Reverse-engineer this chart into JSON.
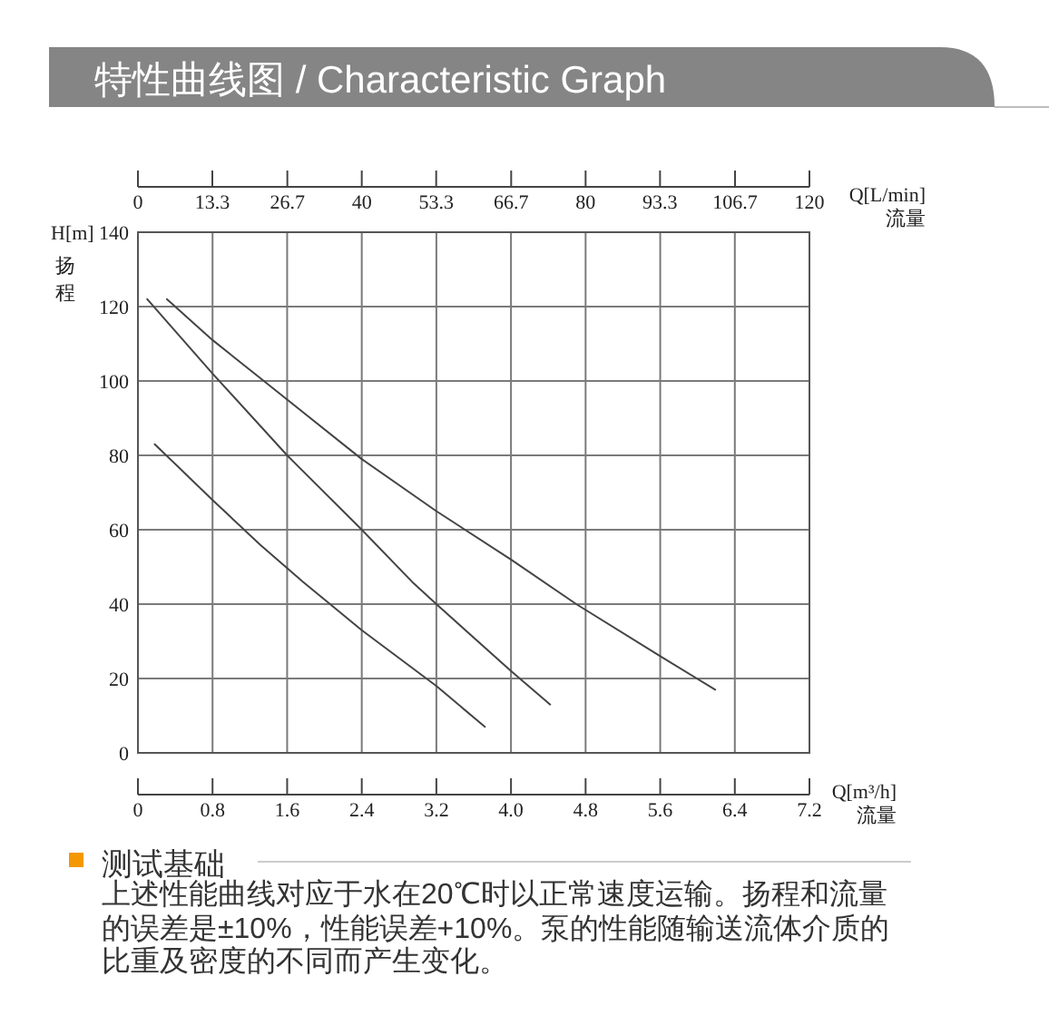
{
  "chart_data": {
    "type": "line",
    "title": "特性曲线图 / Characteristic Graph",
    "xlabel": "Q[m³/h]\n流量",
    "x2label": "Q[L/min]\n流量",
    "ylabel": "H[m]\n扬程",
    "xlim": [
      0,
      7.2
    ],
    "xticks": [
      0,
      0.8,
      1.6,
      2.4,
      3.2,
      {
        "value": 4,
        "label": "4.0"
      },
      4.8,
      5.6,
      6.4,
      7.2
    ],
    "x2lim": [
      0,
      120
    ],
    "x2ticks": [
      0,
      13.3,
      26.7,
      40,
      53.3,
      66.7,
      80,
      93.3,
      106.7,
      120
    ],
    "ylim": [
      0,
      140
    ],
    "yticks": [
      0,
      20,
      40,
      60,
      80,
      100,
      120,
      140
    ],
    "grid": true,
    "series": [
      {
        "color": "#444444",
        "x": [
          0.18,
          0.8,
          1.31,
          1.77,
          2.06,
          2.4,
          3.2,
          3.72
        ],
        "values": [
          83,
          68,
          56,
          46,
          40,
          33,
          18,
          7
        ]
      },
      {
        "color": "#444444",
        "x": [
          0.1,
          0.8,
          1.6,
          2.4,
          2.94,
          3.2,
          4.0,
          4.42
        ],
        "values": [
          122,
          102,
          80,
          60,
          46,
          40,
          22,
          13
        ]
      },
      {
        "color": "#444444",
        "x": [
          0.31,
          0.8,
          1.35,
          1.6,
          2.4,
          3.2,
          4.0,
          4.7,
          5.6,
          6.19
        ],
        "values": [
          122,
          111,
          100,
          95,
          79,
          65,
          52,
          40,
          26,
          17
        ]
      }
    ],
    "annotations": [
      "测试基础",
      "上述性能曲线对应于水在20℃时以正常速度运输。扬程和流量的误差是±10%，性能误差+10%。泵的性能随输送流体介质的比重及密度的不同而产生变化。"
    ]
  }
}
